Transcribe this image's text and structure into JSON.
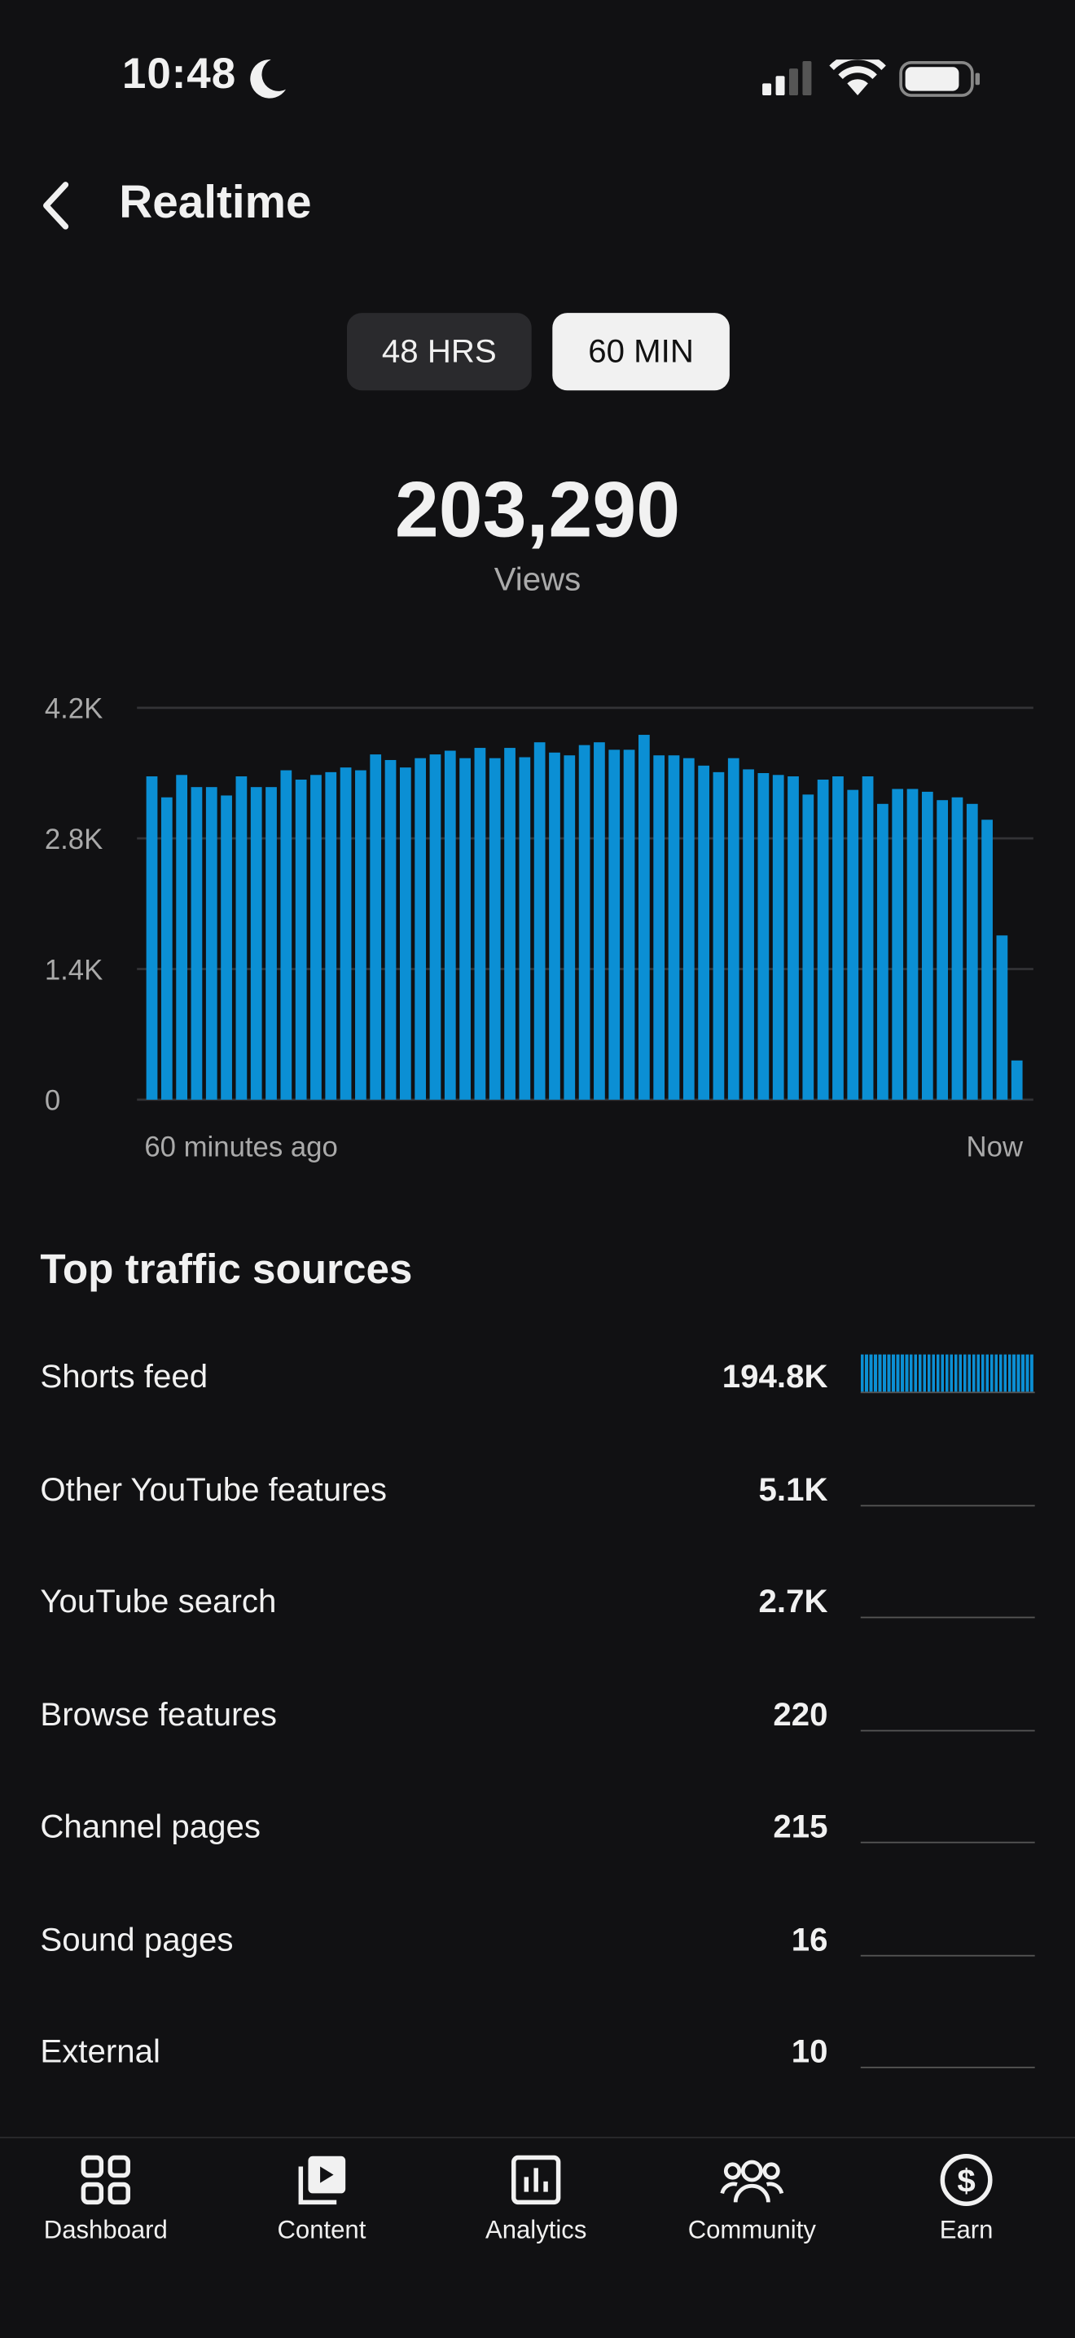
{
  "status_bar": {
    "time": "10:48"
  },
  "header": {
    "title": "Realtime"
  },
  "toggle": {
    "options": [
      "48 HRS",
      "60 MIN"
    ]
  },
  "summary": {
    "total": "203,290",
    "label": "Views"
  },
  "chart_data": {
    "type": "bar",
    "color": "#0b8fd4",
    "grid": true,
    "ylim": [
      0,
      4200
    ],
    "yticks": [
      0,
      {
        "value": 1400,
        "label": "1.4K"
      },
      {
        "value": 2800,
        "label": "2.8K"
      },
      {
        "value": 4200,
        "label": "4.2K"
      }
    ],
    "categories": [
      "60 minutes ago",
      null,
      null,
      null,
      null,
      null,
      null,
      null,
      null,
      null,
      null,
      null,
      null,
      null,
      null,
      null,
      null,
      null,
      null,
      null,
      null,
      null,
      null,
      null,
      null,
      null,
      null,
      null,
      null,
      null,
      null,
      null,
      null,
      null,
      null,
      null,
      null,
      null,
      null,
      null,
      null,
      null,
      null,
      null,
      null,
      null,
      null,
      null,
      null,
      null,
      null,
      null,
      null,
      null,
      null,
      null,
      null,
      null,
      "Now"
    ],
    "values": [
      3465,
      3240,
      3480,
      3350,
      3350,
      3260,
      3465,
      3350,
      3350,
      3530,
      3430,
      3480,
      3510,
      3560,
      3530,
      3700,
      3640,
      3560,
      3660,
      3700,
      3740,
      3660,
      3770,
      3660,
      3770,
      3670,
      3830,
      3720,
      3690,
      3800,
      3830,
      3750,
      3750,
      3910,
      3690,
      3690,
      3660,
      3580,
      3510,
      3660,
      3540,
      3500,
      3480,
      3465,
      3270,
      3430,
      3465,
      3320,
      3465,
      3170,
      3330,
      3330,
      3300,
      3210,
      3240,
      3170,
      3000,
      1760,
      420
    ]
  },
  "traffic_sources": {
    "title": "Top traffic sources",
    "items": [
      {
        "name": "Shorts feed",
        "value": "194.8K"
      },
      {
        "name": "Other YouTube features",
        "value": "5.1K"
      },
      {
        "name": "YouTube search",
        "value": "2.7K"
      },
      {
        "name": "Browse features",
        "value": "220"
      },
      {
        "name": "Channel pages",
        "value": "215"
      },
      {
        "name": "Sound pages",
        "value": "16"
      },
      {
        "name": "External",
        "value": "10"
      }
    ]
  },
  "nav": {
    "items": [
      "Dashboard",
      "Content",
      "Analytics",
      "Community",
      "Earn"
    ]
  }
}
